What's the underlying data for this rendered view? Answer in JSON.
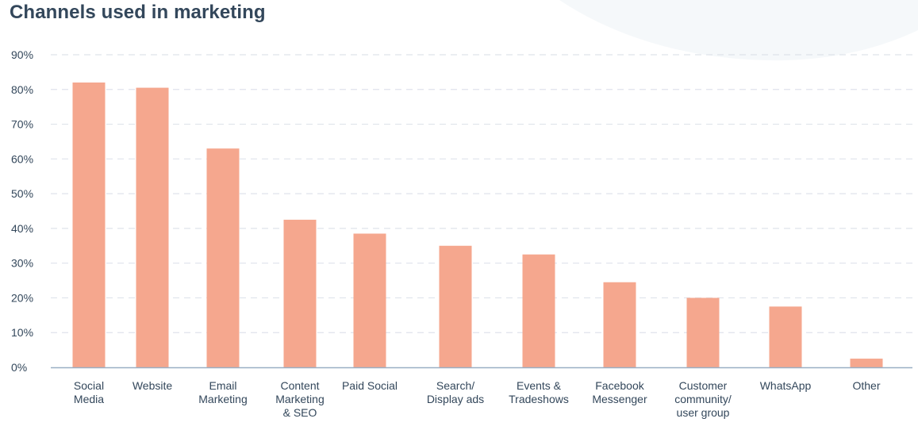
{
  "chart_data": {
    "type": "bar",
    "title": "Channels used in marketing",
    "categories": [
      [
        "Social",
        "Media"
      ],
      [
        "Website"
      ],
      [
        "Email",
        "Marketing"
      ],
      [
        "Content",
        "Marketing",
        "& SEO"
      ],
      [
        "Paid Social"
      ],
      [
        "Search/",
        "Display ads"
      ],
      [
        "Events &",
        "Tradeshows"
      ],
      [
        "Facebook",
        "Messenger"
      ],
      [
        "Customer",
        "community/",
        "user group"
      ],
      [
        "WhatsApp"
      ],
      [
        "Other"
      ]
    ],
    "values": [
      82,
      80.5,
      63,
      42.5,
      38.5,
      35,
      32.5,
      24.5,
      20,
      17.5,
      2.5
    ],
    "y_ticks": [
      "0%",
      "10%",
      "20%",
      "30%",
      "40%",
      "50%",
      "60%",
      "70%",
      "80%",
      "90%"
    ],
    "ylim": [
      0,
      90
    ],
    "xlabel": "",
    "ylabel": "",
    "grid": true,
    "colors": {
      "bar": "#f5a78e",
      "grid": "#dfe3eb",
      "axis": "#99afc4",
      "text": "#33475b",
      "decoration": "#f5f8fa"
    }
  }
}
